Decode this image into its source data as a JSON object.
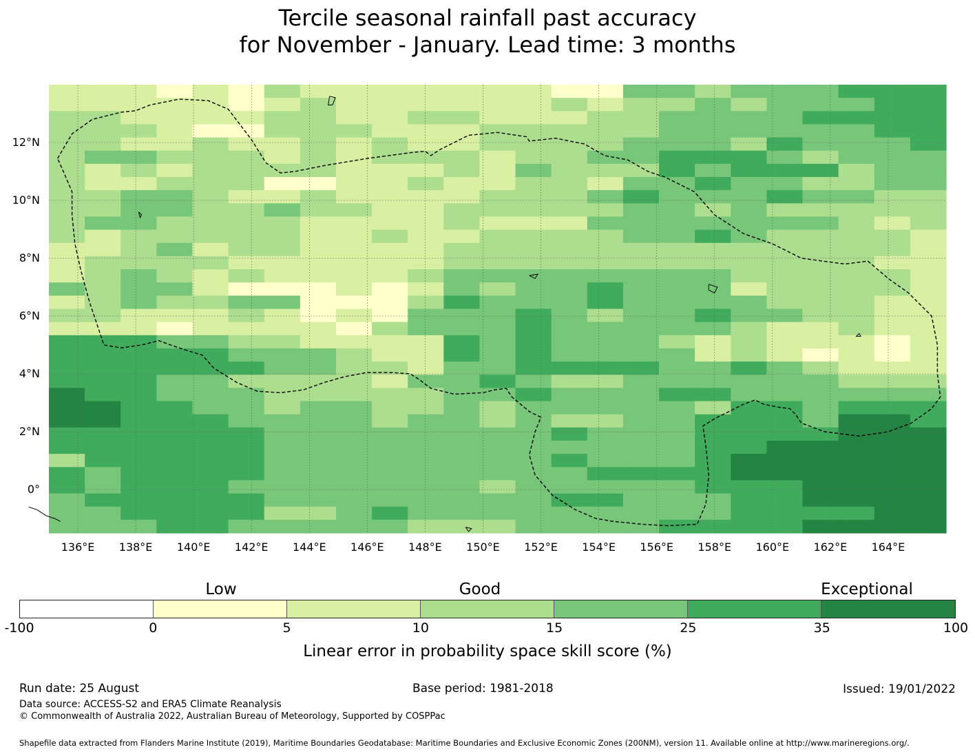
{
  "title": {
    "line1": "Tercile seasonal rainfall past accuracy",
    "line2": "for November - January. Lead time: 3 months"
  },
  "map": {
    "lat_labels": [
      "12°N",
      "10°N",
      "8°N",
      "6°N",
      "4°N",
      "2°N",
      "0°"
    ],
    "lat_values": [
      12,
      10,
      8,
      6,
      4,
      2,
      0
    ],
    "lon_labels": [
      "136°E",
      "138°E",
      "140°E",
      "142°E",
      "144°E",
      "146°E",
      "148°E",
      "150°E",
      "152°E",
      "154°E",
      "156°E",
      "158°E",
      "160°E",
      "162°E",
      "164°E"
    ],
    "lon_values": [
      136,
      138,
      140,
      142,
      144,
      146,
      148,
      150,
      152,
      154,
      156,
      158,
      160,
      162,
      164
    ],
    "extent": {
      "lon_min": 135.0,
      "lon_max": 166.0,
      "lat_min": -1.5,
      "lat_max": 14.0
    },
    "grid_rows": [
      "1110102111111100332333444",
      "1111101211111121223233344",
      "2211112211221112233334444",
      "2221002221112222233333344",
      "2211211212112222333243334",
      "2332221212221223344432333",
      "2121222211121322243444233",
      "2112220011211221334332233",
      "2233211211112223433343322",
      "2233223221122222332322222",
      "2332222111121113333333212",
      "2122222112112222334322221",
      "1123122111122222222222221",
      "1222211111122222222222211",
      "1232121111233333333222221",
      "3233100010132334333122221",
      "1232233000243334333322211",
      "2211121010333432334332211",
      "1110111102333433333211211",
      "4443322111143433321211101",
      "4444433321143433331210101",
      "4444443322133444433432111",
      "4443322221334322333333222",
      "5443332222233433344333333",
      "5544332332232333332443444",
      "5544433332332322334443554",
      "4444443333333343334444555",
      "4444443333333333334455555",
      "2444443333333343334555555",
      "4344443333333334444555555",
      "4344433333332333334445555",
      "3444443333333344333445555",
      "3344442234333333333444455",
      "3334433333222333344445555"
    ],
    "eez_boundary": "EEZ",
    "coastline": "coastline"
  },
  "colorbar": {
    "colors": [
      "#ffffff",
      "#ffffcc",
      "#d9f0a3",
      "#addd8e",
      "#78c679",
      "#41ab5d",
      "#238443"
    ],
    "bounds": [
      "-100",
      "0",
      "5",
      "10",
      "15",
      "25",
      "35",
      "100"
    ],
    "categories": [
      "Low",
      "Good",
      "Exceptional"
    ],
    "label": "Linear error in probability space skill score (%)"
  },
  "footer": {
    "run_date": "Run date: 25 August",
    "base_period": "Base period: 1981-2018",
    "issued": "Issued: 19/01/2022",
    "data_source": "Data source: ACCESS-S2 and ERA5 Climate Reanalysis",
    "copyright": "© Commonwealth of Australia 2022, Australian Bureau of Meteorology, Supported by COSPPac",
    "shapefile": "Shapefile data extracted from Flanders Marine Institute (2019), Maritime Boundaries Geodatabase: Maritime Boundaries and Exclusive Economic Zones (200NM), version 11. Available online at http://www.marineregions.org/."
  }
}
